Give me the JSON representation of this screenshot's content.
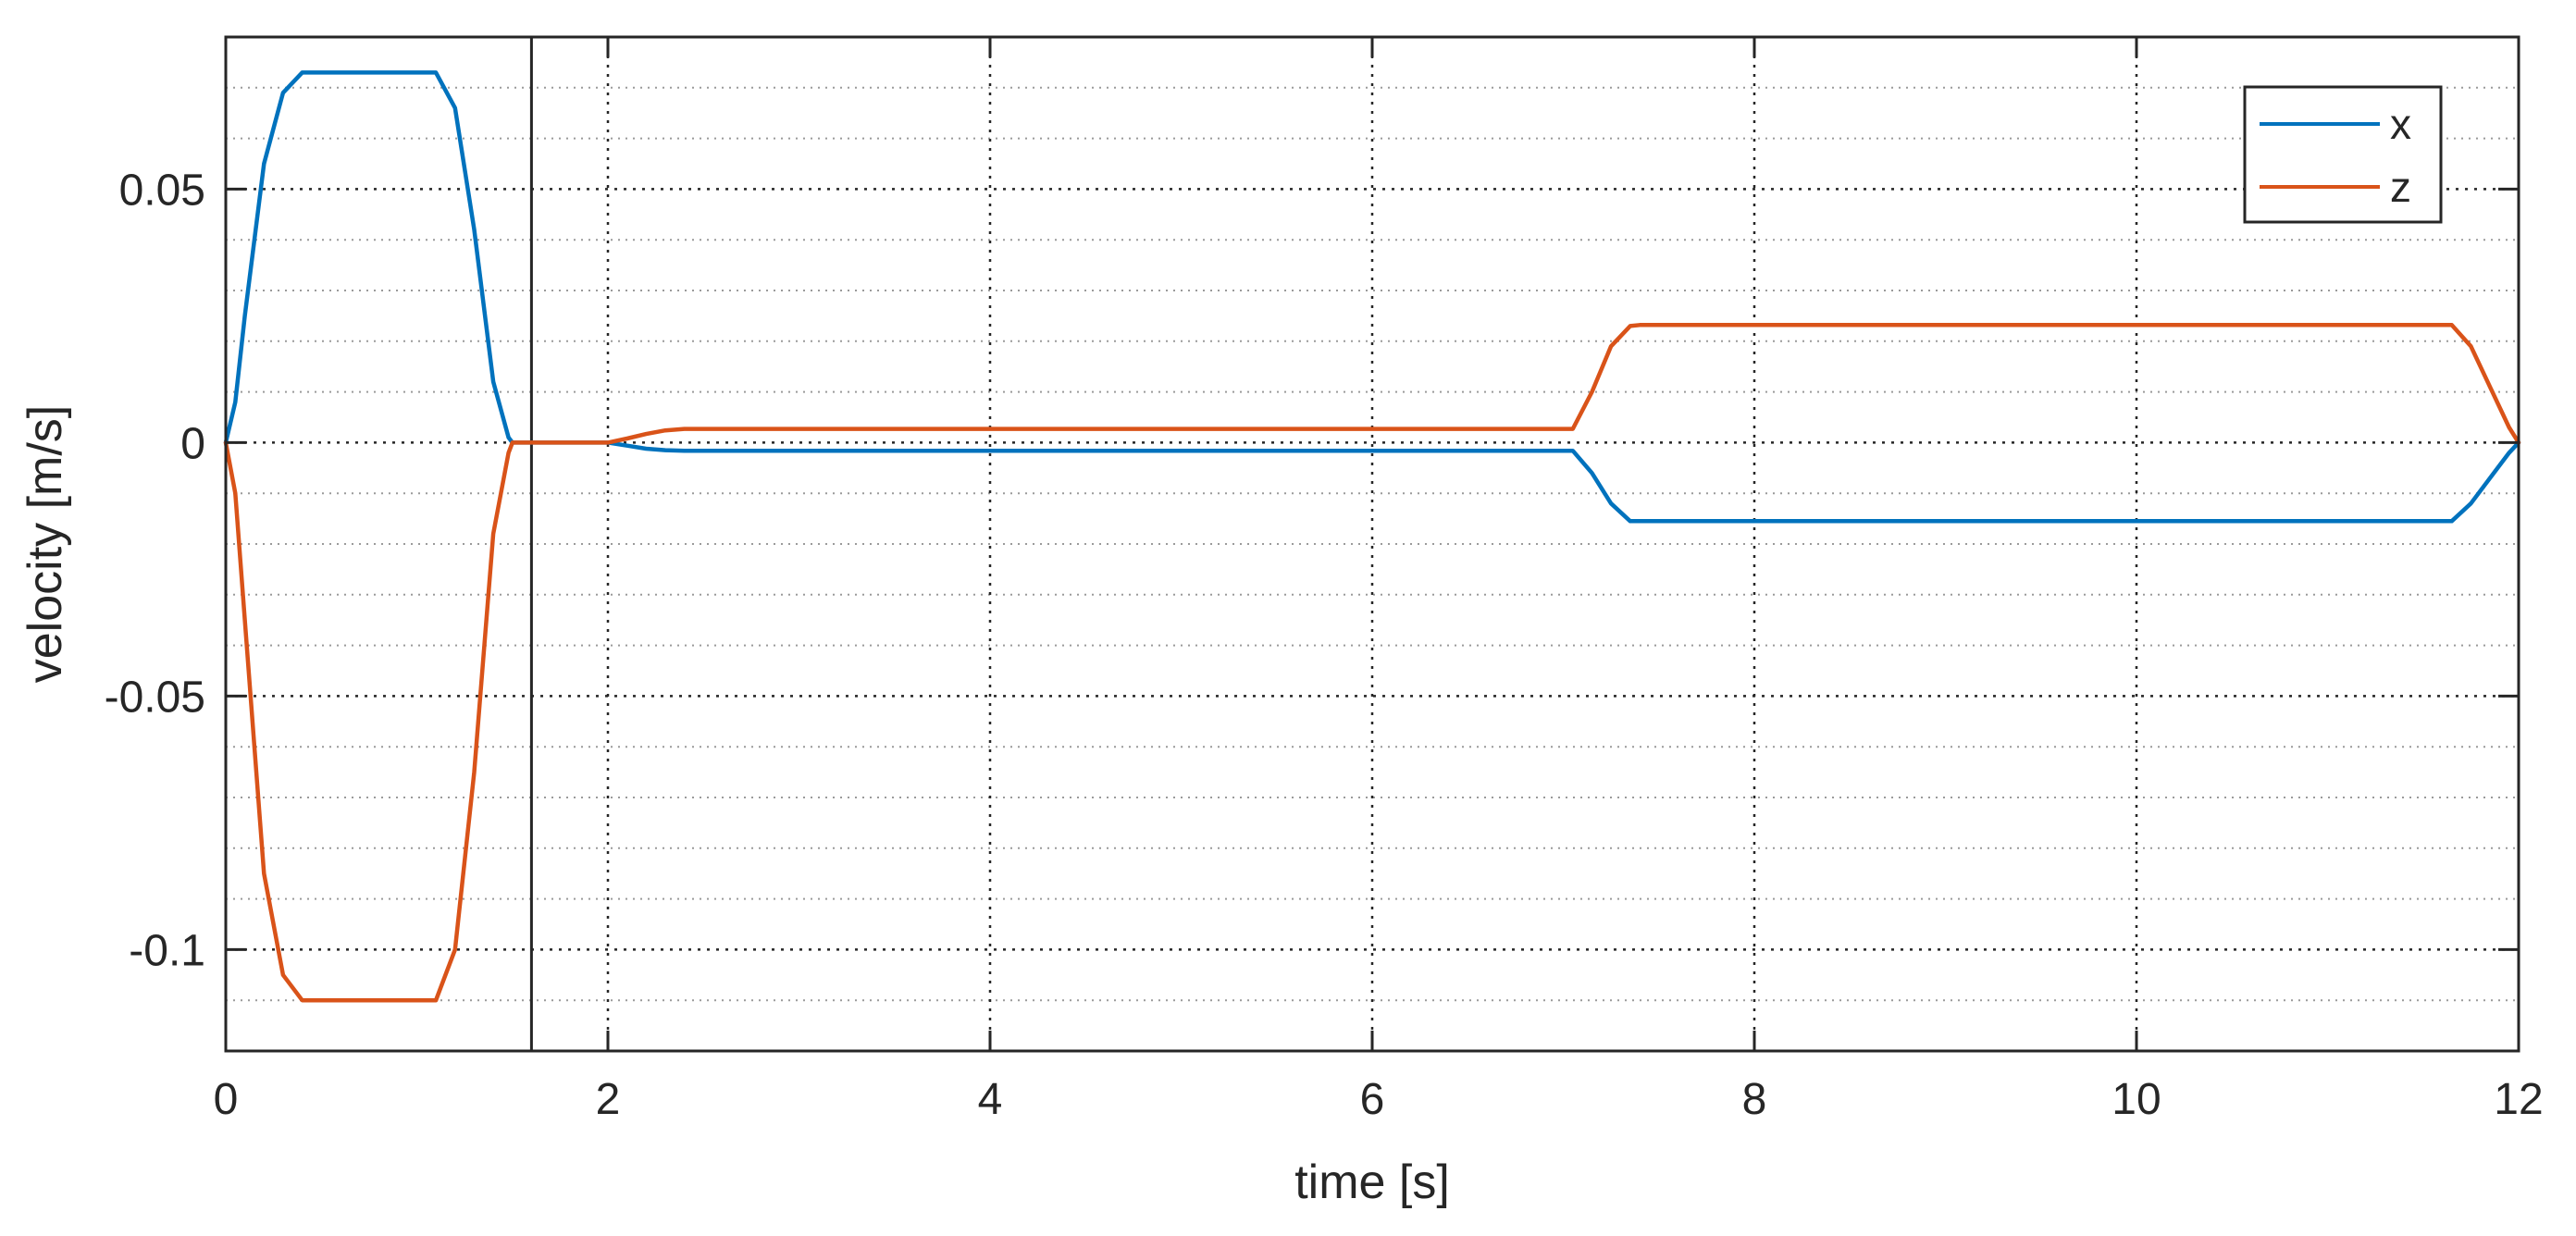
{
  "chart_data": {
    "type": "line",
    "title": "",
    "xlabel": "time [s]",
    "ylabel": "velocity [m/s]",
    "xlim": [
      0,
      12
    ],
    "ylim": [
      -0.12,
      0.08
    ],
    "xticks": [
      0,
      2,
      4,
      6,
      8,
      10,
      12
    ],
    "xtick_labels": [
      "0",
      "2",
      "4",
      "6",
      "8",
      "10",
      "12"
    ],
    "yticks": [
      -0.1,
      -0.05,
      0,
      0.05
    ],
    "ytick_labels": [
      "-0.1",
      "-0.05",
      "0",
      "0.05"
    ],
    "grid": true,
    "minor_grid": true,
    "legend_position": "top-right",
    "vertical_marker_x": 1.6,
    "series": [
      {
        "name": "x",
        "color": "#0072BD",
        "points": [
          [
            0,
            0
          ],
          [
            0.05,
            0.008
          ],
          [
            0.1,
            0.025
          ],
          [
            0.2,
            0.055
          ],
          [
            0.3,
            0.069
          ],
          [
            0.4,
            0.073
          ],
          [
            1.1,
            0.073
          ],
          [
            1.2,
            0.066
          ],
          [
            1.3,
            0.042
          ],
          [
            1.4,
            0.012
          ],
          [
            1.48,
            0.001
          ],
          [
            1.5,
            0
          ],
          [
            2.0,
            0
          ],
          [
            2.1,
            -0.0006
          ],
          [
            2.2,
            -0.0012
          ],
          [
            2.3,
            -0.0015
          ],
          [
            2.4,
            -0.0016
          ],
          [
            7.05,
            -0.0016
          ],
          [
            7.15,
            -0.006
          ],
          [
            7.25,
            -0.012
          ],
          [
            7.35,
            -0.0155
          ],
          [
            7.4,
            -0.0155
          ],
          [
            11.65,
            -0.0155
          ],
          [
            11.75,
            -0.012
          ],
          [
            11.85,
            -0.007
          ],
          [
            11.95,
            -0.002
          ],
          [
            12.0,
            0
          ]
        ]
      },
      {
        "name": "z",
        "color": "#D95319",
        "points": [
          [
            0,
            0
          ],
          [
            0.05,
            -0.01
          ],
          [
            0.1,
            -0.035
          ],
          [
            0.2,
            -0.085
          ],
          [
            0.3,
            -0.105
          ],
          [
            0.4,
            -0.11
          ],
          [
            1.1,
            -0.11
          ],
          [
            1.2,
            -0.1
          ],
          [
            1.3,
            -0.065
          ],
          [
            1.4,
            -0.018
          ],
          [
            1.48,
            -0.002
          ],
          [
            1.5,
            0
          ],
          [
            2.0,
            0
          ],
          [
            2.1,
            0.0008
          ],
          [
            2.2,
            0.0017
          ],
          [
            2.3,
            0.0024
          ],
          [
            2.4,
            0.0027
          ],
          [
            7.05,
            0.0027
          ],
          [
            7.15,
            0.01
          ],
          [
            7.25,
            0.019
          ],
          [
            7.35,
            0.023
          ],
          [
            7.4,
            0.0232
          ],
          [
            11.65,
            0.0232
          ],
          [
            11.75,
            0.019
          ],
          [
            11.85,
            0.011
          ],
          [
            11.95,
            0.003
          ],
          [
            12.0,
            0
          ]
        ]
      }
    ]
  }
}
